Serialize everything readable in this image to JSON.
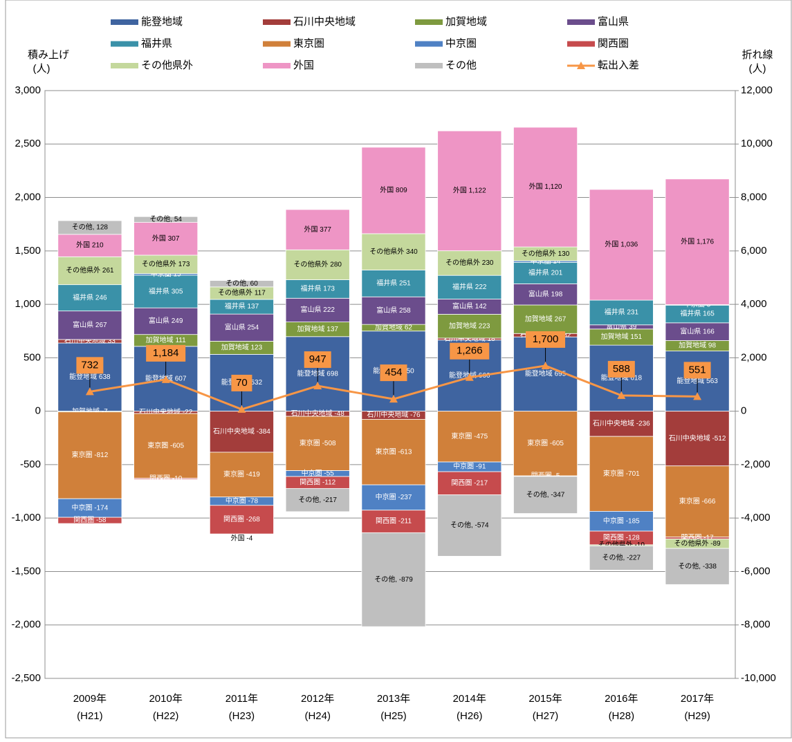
{
  "chart_data": {
    "type": "bar",
    "categories": [
      "2009年",
      "2010年",
      "2011年",
      "2012年",
      "2013年",
      "2014年",
      "2015年",
      "2016年",
      "2017年"
    ],
    "category_sublabels": [
      "(H21)",
      "(H22)",
      "(H23)",
      "(H24)",
      "(H25)",
      "(H26)",
      "(H27)",
      "(H28)",
      "(H29)"
    ],
    "ylabel": [
      "積み上げ",
      "(人)"
    ],
    "y2label": [
      "折れ線",
      "(人)"
    ],
    "ylim": [
      -2500,
      3000
    ],
    "yticks": [
      {
        "value": 3000,
        "label": "3,000"
      },
      {
        "value": 2500,
        "label": "2,500"
      },
      {
        "value": 2000,
        "label": "2,000"
      },
      {
        "value": 1500,
        "label": "1,500"
      },
      {
        "value": 1000,
        "label": "1,000"
      },
      500,
      0,
      -500,
      {
        "value": -1000,
        "label": "-1,000"
      },
      {
        "value": -1500,
        "label": "-1,500"
      },
      {
        "value": -2000,
        "label": "-2,000"
      },
      {
        "value": -2500,
        "label": "-2,500"
      }
    ],
    "y2lim": [
      -10000,
      12000
    ],
    "y2ticks": [
      {
        "value": 12000,
        "label": "12,000"
      },
      {
        "value": 10000,
        "label": "10,000"
      },
      {
        "value": 8000,
        "label": "8,000"
      },
      {
        "value": 6000,
        "label": "6,000"
      },
      {
        "value": 4000,
        "label": "4,000"
      },
      {
        "value": 2000,
        "label": "2,000"
      },
      0,
      {
        "value": -2000,
        "label": "-2,000"
      },
      {
        "value": -4000,
        "label": "-4,000"
      },
      {
        "value": -6000,
        "label": "-6,000"
      },
      {
        "value": -8000,
        "label": "-8,000"
      },
      {
        "value": -10000,
        "label": "-10,000"
      }
    ],
    "grid": true,
    "series": [
      {
        "name": "能登地域",
        "color": "#3f64a0",
        "values": [
          638,
          607,
          532,
          698,
          750,
          666,
          695,
          618,
          563
        ],
        "value_labels": [
          "能登地域 638",
          "能登地域 607",
          "能登地域 532",
          "能登地域 698",
          "能登地域 750",
          "能登地域 666",
          "能登地域 695",
          "能登地域 618",
          "能登地域 563"
        ]
      },
      {
        "name": "石川中央地域",
        "color": "#a33d3b",
        "values": [
          33,
          -22,
          -384,
          -48,
          -76,
          18,
          32,
          -236,
          -512
        ],
        "value_labels": [
          "石川中央地域 33",
          "石川中央地域 -22",
          "石川中央地域 -384",
          "石川中央地域 -48",
          "石川中央地域 -76",
          "石川中央地域 18",
          "石川中央地域 32",
          "石川中央地域 -236",
          "石川中央地域 -512"
        ]
      },
      {
        "name": "加賀地域",
        "color": "#7e9a3f",
        "values": [
          -7,
          111,
          123,
          137,
          62,
          223,
          267,
          151,
          98
        ],
        "value_labels": [
          "加賀地域 -7",
          "加賀地域 111",
          "加賀地域 123",
          "加賀地域 137",
          "加賀地域 62",
          "加賀地域 223",
          "加賀地域 267",
          "加賀地域 151",
          "加賀地域 98"
        ]
      },
      {
        "name": "富山県",
        "color": "#6b4d8c",
        "values": [
          267,
          249,
          254,
          222,
          258,
          142,
          198,
          39,
          166
        ],
        "value_labels": [
          "富山県 267",
          "富山県 249",
          "富山県 254",
          "富山県 222",
          "富山県 258",
          "富山県 142",
          "富山県 198",
          "富山県 39",
          "富山県 166"
        ]
      },
      {
        "name": "福井県",
        "color": "#3a91a8",
        "values": [
          246,
          305,
          137,
          173,
          251,
          222,
          201,
          231,
          165
        ],
        "value_labels": [
          "福井県 246",
          "福井県 305",
          "福井県 137",
          "福井県 173",
          "福井県 251",
          "福井県 222",
          "福井県 201",
          "福井県 231",
          "福井県 165"
        ]
      },
      {
        "name": "東京圏",
        "color": "#d0803a",
        "values": [
          -812,
          -605,
          -419,
          -508,
          -613,
          -475,
          -605,
          -701,
          -666
        ],
        "value_labels": [
          "東京圏 -812",
          "東京圏 -605",
          "東京圏 -419",
          "東京圏 -508",
          "東京圏 -613",
          "東京圏 -475",
          "東京圏 -605",
          "東京圏 -701",
          "東京圏 -666"
        ]
      },
      {
        "name": "中京圏",
        "color": "#4f81c4",
        "values": [
          -174,
          15,
          -78,
          -55,
          -237,
          -91,
          14,
          -185,
          5
        ],
        "value_labels": [
          "中京圏 -174",
          "中京圏 15",
          "中京圏 -78",
          "中京圏 -55",
          "中京圏 -237",
          "中京圏 -91",
          "中京圏 14",
          "中京圏 -185",
          "中京圏 5"
        ]
      },
      {
        "name": "関西圏",
        "color": "#c64b4d",
        "values": [
          -58,
          -10,
          -268,
          -112,
          -211,
          -217,
          -5,
          -128,
          -17
        ],
        "value_labels": [
          "関西圏 -58",
          "関西圏 -10",
          "関西圏 -268",
          "関西圏 -112",
          "関西圏 -211",
          "関西圏 -217",
          "関西圏 -5",
          "関西圏 -128",
          "関西圏 -17"
        ]
      },
      {
        "name": "その他県外",
        "color": "#c4d89c",
        "values": [
          261,
          173,
          117,
          280,
          340,
          230,
          130,
          -10,
          -89
        ],
        "value_labels": [
          "その他県外 261",
          "その他県外 173",
          "その他県外 117",
          "その他県外 280",
          "その他県外 340",
          "その他県外 230",
          "その他県外 130",
          "その他県外 -10",
          "その他県外 -89"
        ]
      },
      {
        "name": "外国",
        "color": "#ee95c5",
        "values": [
          210,
          307,
          -4,
          377,
          809,
          1122,
          1120,
          1036,
          1176
        ],
        "value_labels": [
          "外国 210",
          "外国 307",
          "外国 -4",
          "外国 377",
          "外国 809",
          "外国 1,122",
          "外国 1,120",
          "外国 1,036",
          "外国 1,176"
        ]
      },
      {
        "name": "その他",
        "color": "#bfbfbf",
        "values": [
          128,
          54,
          60,
          -217,
          -879,
          -574,
          -347,
          -227,
          -338
        ],
        "value_labels": [
          "その他, 128",
          "その他, 54",
          "その他, 60",
          "その他, -217",
          "その他, -879",
          "その他, -574",
          "その他, -347",
          "その他, -227",
          "その他, -338"
        ]
      },
      {
        "name": "転出入差",
        "color": "#f79646",
        "type": "line",
        "axis": "y2",
        "values": [
          732,
          1184,
          70,
          947,
          454,
          1266,
          1700,
          588,
          551
        ],
        "value_labels": [
          "732",
          "1,184",
          "70",
          "947",
          "454",
          "1,266",
          "1,700",
          "588",
          "551"
        ]
      }
    ]
  }
}
